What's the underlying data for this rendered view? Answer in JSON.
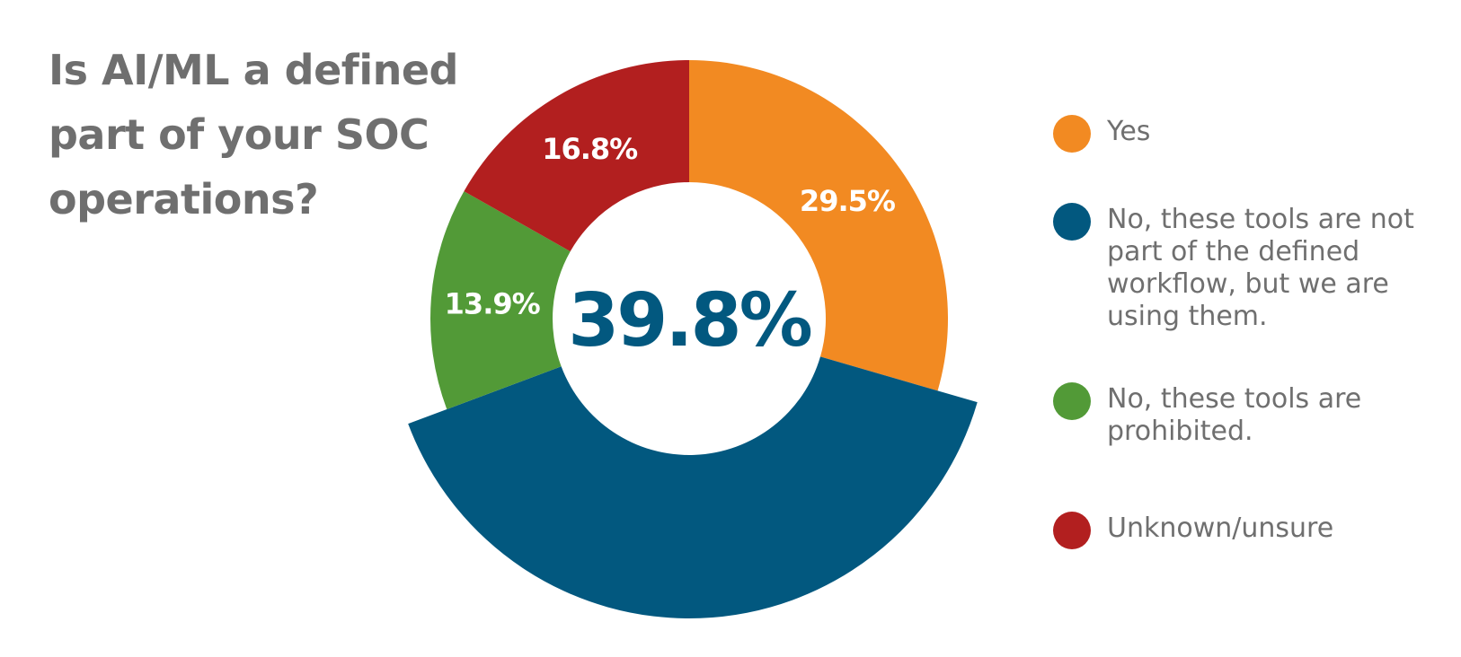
{
  "chart_data": {
    "type": "pie",
    "title": "Is AI/ML a defined part of your SOC operations?",
    "center_label": "39.8%",
    "slices": [
      {
        "label": "Yes",
        "value": 29.5,
        "display": "29.5%",
        "color": "#f28a22",
        "exploded": false
      },
      {
        "label": "No, these tools are not part of the defined workflow, but we are using them.",
        "value": 39.8,
        "display": "",
        "color": "#02587f",
        "exploded": true
      },
      {
        "label": "No, these tools are prohibited.",
        "value": 13.9,
        "display": "13.9%",
        "color": "#529a37",
        "exploded": false
      },
      {
        "label": "Unknown/unsure",
        "value": 16.8,
        "display": "16.8%",
        "color": "#b21f1f",
        "exploded": false
      }
    ],
    "legend_position": "right"
  }
}
